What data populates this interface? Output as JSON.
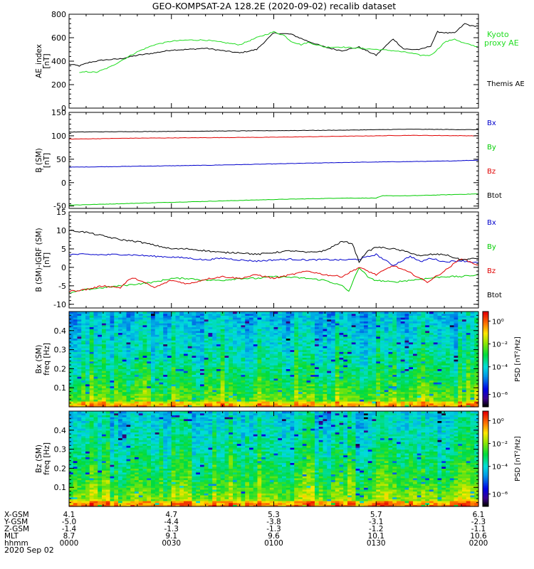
{
  "title": "GEO-KOMPSAT-2A 128.2E (2020-09-02) recalib dataset",
  "colors": {
    "black": "#000000",
    "red": "#e00000",
    "green": "#00cc00",
    "blue": "#0000cc",
    "kyoto": "#22dd22"
  },
  "chart_data": [
    {
      "type": "line",
      "panel": "ae",
      "ylabel_lines": [
        "AE_index",
        "[nT]"
      ],
      "ylim": [
        0,
        800
      ],
      "yticks": [
        "0",
        "200",
        "400",
        "600",
        "800"
      ],
      "yticks_values": [
        0,
        200,
        400,
        600,
        800
      ],
      "xlim": [
        0,
        120
      ],
      "series": [
        {
          "name": "Themis AE",
          "color": "#000000",
          "x": [
            0,
            3,
            6,
            10,
            15,
            20,
            25,
            30,
            35,
            40,
            45,
            50,
            55,
            60,
            65,
            70,
            72,
            75,
            78,
            80,
            85,
            90,
            95,
            98,
            100,
            103,
            106,
            108,
            111,
            113,
            116,
            118,
            120
          ],
          "y": [
            375,
            360,
            390,
            410,
            420,
            450,
            470,
            495,
            500,
            510,
            490,
            470,
            500,
            640,
            630,
            570,
            550,
            520,
            500,
            490,
            520,
            450,
            590,
            505,
            500,
            500,
            530,
            650,
            640,
            640,
            720,
            700,
            700
          ]
        },
        {
          "name": "Kyoto proxy AE",
          "color": "#22dd22",
          "x": [
            3,
            5,
            8,
            12,
            15,
            20,
            25,
            30,
            35,
            40,
            45,
            50,
            55,
            60,
            63,
            65,
            68,
            70,
            75,
            80,
            85,
            90,
            95,
            100,
            103,
            106,
            108,
            110,
            113,
            115,
            120
          ],
          "y": [
            300,
            310,
            305,
            350,
            400,
            480,
            540,
            570,
            580,
            580,
            560,
            540,
            600,
            650,
            620,
            570,
            540,
            560,
            520,
            520,
            510,
            500,
            490,
            470,
            450,
            450,
            500,
            560,
            590,
            560,
            520
          ]
        }
      ],
      "legend": [
        "Kyoto",
        "proxy AE",
        "Themis AE"
      ]
    },
    {
      "type": "line",
      "panel": "b",
      "ylabel_lines": [
        "B  (SM)",
        "[nT]"
      ],
      "ylabel_sub": "r",
      "ylim": [
        -55,
        150
      ],
      "yticks": [
        "-50",
        "0",
        "50",
        "100",
        "150"
      ],
      "yticks_values": [
        -50,
        0,
        50,
        100,
        150
      ],
      "xlim": [
        0,
        120
      ],
      "series": [
        {
          "name": "Bx",
          "color": "#0000cc",
          "x": [
            0,
            20,
            40,
            60,
            80,
            100,
            110,
            120
          ],
          "y": [
            33,
            35,
            37,
            40,
            43,
            45,
            46,
            48
          ]
        },
        {
          "name": "By",
          "color": "#00cc00",
          "x": [
            0,
            20,
            40,
            60,
            80,
            90,
            92,
            100,
            110,
            120
          ],
          "y": [
            -48,
            -44,
            -40,
            -36,
            -33,
            -33,
            -28,
            -28,
            -26,
            -24
          ]
        },
        {
          "name": "Bz",
          "color": "#e00000",
          "x": [
            0,
            20,
            40,
            60,
            80,
            100,
            120
          ],
          "y": [
            93,
            95,
            96,
            97,
            99,
            101,
            100
          ]
        },
        {
          "name": "Btot",
          "color": "#000000",
          "x": [
            0,
            20,
            40,
            60,
            80,
            100,
            120
          ],
          "y": [
            108,
            109,
            110,
            111,
            112,
            114,
            113
          ]
        }
      ],
      "legend": [
        "Bx",
        "By",
        "Bz",
        "Btot"
      ]
    },
    {
      "type": "line",
      "panel": "db",
      "ylabel_lines": [
        "B (SM)-IGRF (SM)",
        "[nT]"
      ],
      "ylim": [
        -11,
        15
      ],
      "yticks": [
        "-10",
        "-5",
        "0",
        "5",
        "10",
        "15"
      ],
      "yticks_values": [
        -10,
        -5,
        0,
        5,
        10,
        15
      ],
      "xlim": [
        0,
        120
      ],
      "series": [
        {
          "name": "Bx",
          "color": "#0000cc",
          "x": [
            0,
            5,
            10,
            15,
            20,
            25,
            30,
            35,
            40,
            45,
            50,
            55,
            60,
            65,
            70,
            75,
            80,
            85,
            90,
            95,
            100,
            103,
            106,
            110,
            115,
            120
          ],
          "y": [
            3.5,
            3.5,
            3.4,
            3.5,
            3.3,
            3.0,
            2.8,
            2.5,
            2.0,
            2.5,
            2.0,
            1.7,
            2.0,
            2.2,
            2.0,
            2.1,
            2.0,
            2.2,
            3.5,
            0.5,
            3.0,
            1.5,
            2.5,
            1.5,
            1.8,
            1.2
          ]
        },
        {
          "name": "By",
          "color": "#00cc00",
          "x": [
            0,
            5,
            10,
            15,
            20,
            25,
            30,
            35,
            40,
            45,
            50,
            55,
            60,
            65,
            70,
            75,
            80,
            82,
            85,
            88,
            90,
            95,
            100,
            105,
            110,
            115,
            120
          ],
          "y": [
            -7.0,
            -6.0,
            -5.5,
            -5.0,
            -4.5,
            -4.0,
            -3.0,
            -3.0,
            -3.5,
            -3.5,
            -3.0,
            -3.0,
            -2.5,
            -2.7,
            -3.0,
            -3.5,
            -5.0,
            -6.5,
            0,
            -3.0,
            -3.5,
            -4.0,
            -3.5,
            -3.0,
            -2.5,
            -2.5,
            -2.0
          ]
        },
        {
          "name": "Bz",
          "color": "#e00000",
          "x": [
            0,
            5,
            10,
            15,
            18,
            20,
            25,
            30,
            35,
            40,
            45,
            50,
            55,
            60,
            65,
            70,
            75,
            80,
            85,
            90,
            95,
            100,
            105,
            110,
            115,
            120
          ],
          "y": [
            -6.5,
            -6.0,
            -5.0,
            -5.5,
            -3.0,
            -3.2,
            -5.5,
            -3.5,
            -4.5,
            -3.2,
            -2.5,
            -3.0,
            -2.0,
            -3.0,
            -2.0,
            -1.0,
            -2.0,
            -2.5,
            0.0,
            -2.0,
            0.5,
            -1.5,
            -4.0,
            -1.0,
            2.5,
            0.5
          ]
        },
        {
          "name": "Btot",
          "color": "#000000",
          "x": [
            0,
            5,
            10,
            15,
            20,
            25,
            30,
            35,
            40,
            45,
            50,
            55,
            60,
            65,
            70,
            75,
            80,
            83,
            85,
            87,
            90,
            95,
            100,
            103,
            106,
            110,
            115,
            120
          ],
          "y": [
            10.0,
            9.5,
            8.5,
            7.5,
            7.0,
            6.0,
            5.0,
            5.0,
            4.5,
            4.0,
            4.0,
            3.5,
            4.0,
            4.5,
            4.0,
            4.5,
            7.0,
            6.5,
            1.5,
            4.0,
            5.5,
            5.0,
            4.0,
            3.0,
            3.5,
            3.5,
            2.0,
            2.5
          ]
        }
      ],
      "legend": [
        "Bx",
        "By",
        "Bz",
        "Btot"
      ]
    },
    {
      "type": "heatmap",
      "panel": "bx-spec",
      "ylabel_lines": [
        "Bx (SM)",
        "freq [Hz]"
      ],
      "ylim": [
        0,
        0.5
      ],
      "yticks": [
        "0.1",
        "0.2",
        "0.3",
        "0.4"
      ],
      "yticks_values": [
        0.1,
        0.2,
        0.3,
        0.4
      ],
      "colorbar": {
        "label": "PSD [nT²/Hz]",
        "ticks": [
          "10⁰",
          "10⁻²",
          "10⁻⁴",
          "10⁻⁶"
        ]
      }
    },
    {
      "type": "heatmap",
      "panel": "bz-spec",
      "ylabel_lines": [
        "Bz (SM)",
        "freq [Hz]"
      ],
      "ylim": [
        0,
        0.5
      ],
      "yticks": [
        "0.1",
        "0.2",
        "0.3",
        "0.4"
      ],
      "yticks_values": [
        0.1,
        0.2,
        0.3,
        0.4
      ],
      "colorbar": {
        "label": "PSD [nT²/Hz]",
        "ticks": [
          "10⁰",
          "10⁻²",
          "10⁻⁴",
          "10⁻⁶"
        ]
      }
    }
  ],
  "axis_table": {
    "row_labels": [
      "X-GSM",
      "Y-GSM",
      "Z-GSM",
      "MLT",
      "hhmm"
    ],
    "columns": [
      {
        "x": 0,
        "values": [
          "4.1",
          "-5.0",
          "-1.4",
          "8.7",
          "0000"
        ]
      },
      {
        "x": 30,
        "values": [
          "4.7",
          "-4.4",
          "-1.3",
          "9.1",
          "0030"
        ]
      },
      {
        "x": 60,
        "values": [
          "5.3",
          "-3.8",
          "-1.3",
          "9.6",
          "0100"
        ]
      },
      {
        "x": 90,
        "values": [
          "5.7",
          "-3.1",
          "-1.2",
          "10.1",
          "0130"
        ]
      },
      {
        "x": 120,
        "values": [
          "6.1",
          "-2.3",
          "-1.1",
          "10.6",
          "0200"
        ]
      }
    ],
    "date": "2020 Sep 02"
  }
}
